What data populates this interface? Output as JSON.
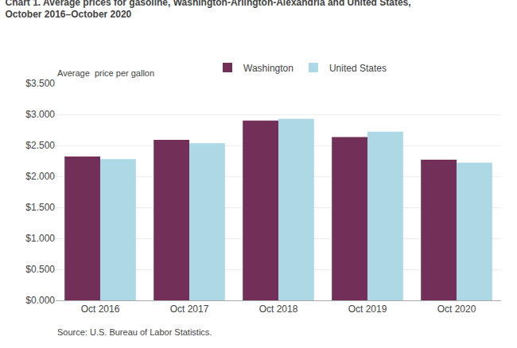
{
  "chart_data": {
    "type": "bar",
    "title": "Chart 1. Average prices for gasoline, Washington-Arlington-Alexandria and United States,",
    "subtitle": "October 2016–October 2020",
    "ylabel": "Average  price per gallon",
    "annotations": [
      "Source: U.S. Bureau of Labor Statistics."
    ],
    "categories": [
      "Oct 2016",
      "Oct 2017",
      "Oct 2018",
      "Oct 2019",
      "Oct 2020"
    ],
    "series": [
      {
        "name": "Washington",
        "color": "#722F57",
        "values": [
          2.32,
          2.59,
          2.9,
          2.635,
          2.27
        ]
      },
      {
        "name": "United States",
        "color": "#ADD8E6",
        "values": [
          2.28,
          2.535,
          2.93,
          2.72,
          2.22
        ]
      }
    ],
    "ylim": [
      0,
      3.5
    ],
    "yticks": [
      {
        "value": 0.0,
        "label": "$0.000"
      },
      {
        "value": 0.5,
        "label": "$0.500"
      },
      {
        "value": 1.0,
        "label": "$1.000"
      },
      {
        "value": 1.5,
        "label": "$1.500"
      },
      {
        "value": 2.0,
        "label": "$2.000"
      },
      {
        "value": 2.5,
        "label": "$2.500"
      },
      {
        "value": 3.0,
        "label": "$3.000"
      },
      {
        "value": 3.5,
        "label": "$3.500"
      }
    ],
    "grid": true,
    "legend": "top"
  }
}
